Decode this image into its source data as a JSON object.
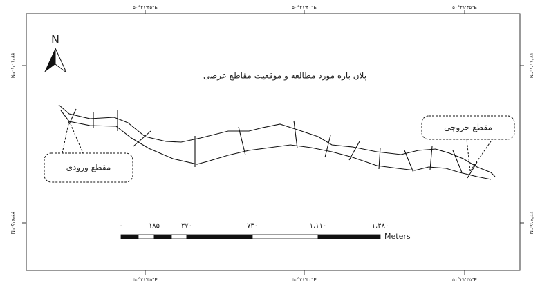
{
  "north_arrow": "N",
  "title": "پلان بازه مورد مطالعه و موقعیت مقاطع عرضی",
  "callouts": {
    "inlet": "مقطع ورودی",
    "outlet": "مقطع خروجی"
  },
  "top_labels": [
    "۵۰°۲۱'۳۵\"E",
    "۵۰°۲۱'۴۰\"E",
    "۵۰°۲۱'۴۵\"E"
  ],
  "bottom_labels": [
    "۵۰°۲۱'۳۵\"E",
    "۵۰°۲۱'۴۰\"E",
    "۵۰°۲۱'۴۵\"E"
  ],
  "left_labels": [
    "۳۴°۱۰'۱۰\"N",
    "۳۴°۹'۵۰\"N"
  ],
  "right_labels": [
    "۳۴°۱۰'۱۰\"N",
    "۳۴°۹'۵۰\"N"
  ],
  "scale_bar": {
    "labels": [
      "۰",
      "۱۸۵",
      "۳۷۰",
      "۷۴۰",
      "۱,۱۱۰",
      "۱,۴۸۰"
    ],
    "unit": "Meters"
  }
}
